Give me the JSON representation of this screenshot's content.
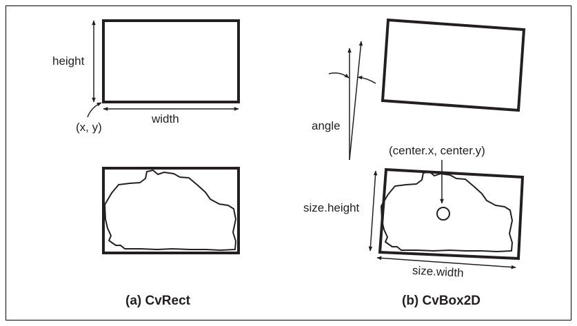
{
  "panel_a": {
    "labels": {
      "height": "height",
      "width": "width",
      "origin": "(x, y)"
    },
    "caption": "(a) CvRect"
  },
  "panel_b": {
    "labels": {
      "angle": "angle",
      "center": "(center.x, center.y)",
      "size_height": "size.height",
      "size_width": "size.width"
    },
    "caption": "(b) CvBox2D"
  },
  "colors": {
    "ink": "#231f20",
    "frame": "#000000",
    "background": "#ffffff"
  }
}
